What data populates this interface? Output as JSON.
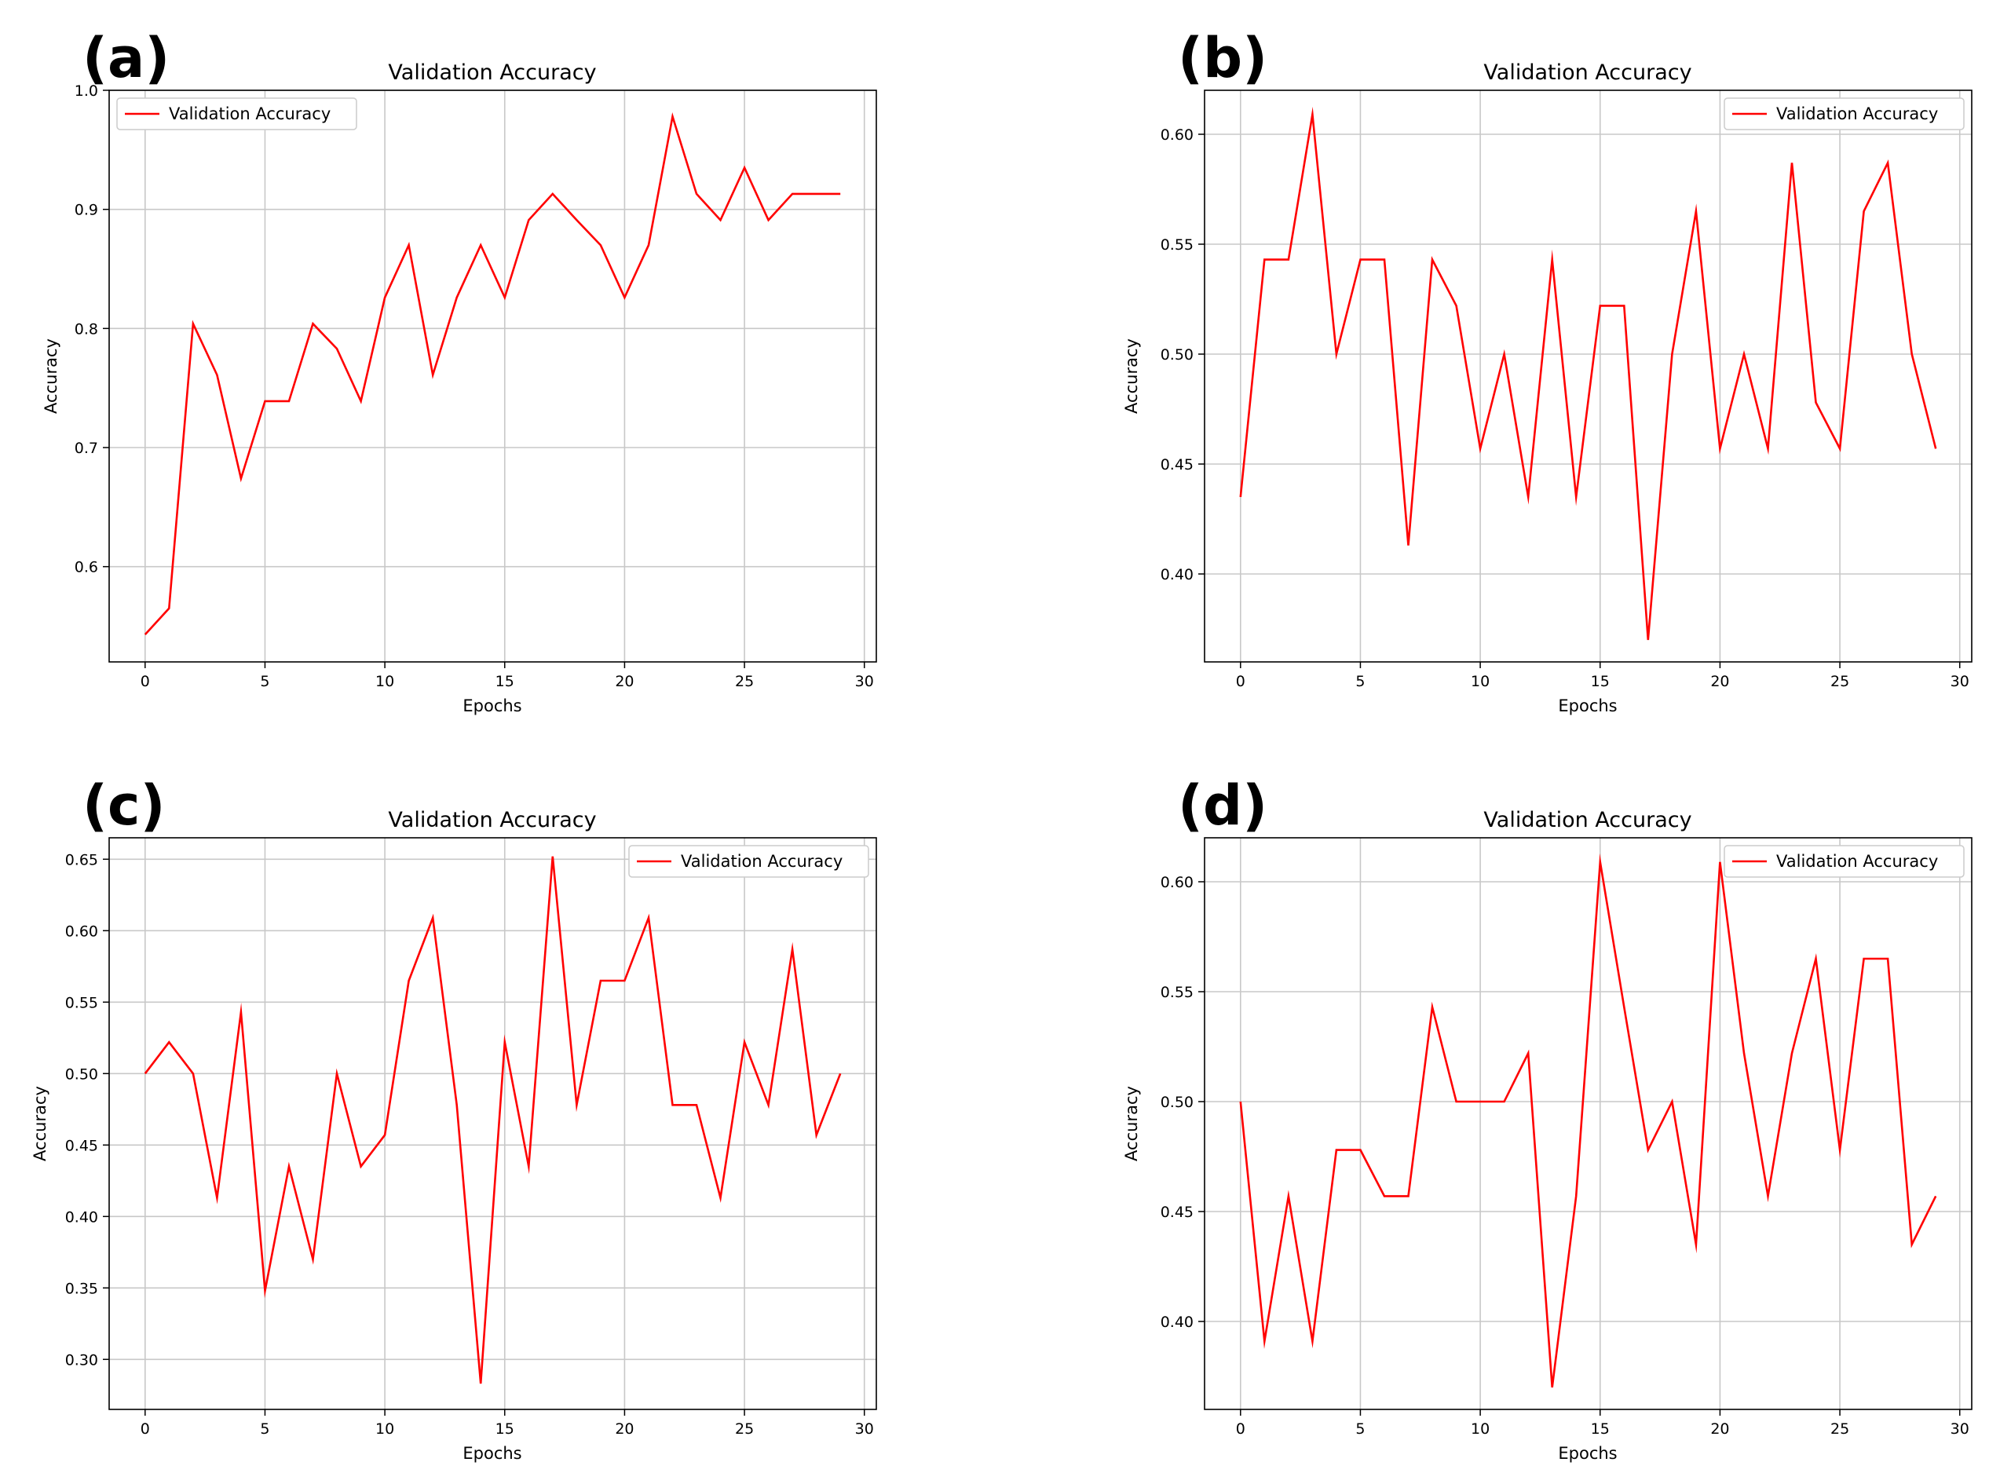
{
  "colors": {
    "line": "#ff0000",
    "grid": "#c8c8c8",
    "axes": "#000000",
    "background": "#ffffff"
  },
  "chart_data": [
    {
      "panel_label": "(a)",
      "type": "line",
      "title": "Validation Accuracy",
      "xlabel": "Epochs",
      "ylabel": "Accuracy",
      "xlim": [
        -1.5,
        30.5
      ],
      "ylim": [
        0.52,
        1.0
      ],
      "xticks": [
        0,
        5,
        10,
        15,
        20,
        25,
        30
      ],
      "yticks": [
        0.6,
        0.7,
        0.8,
        0.9,
        1.0
      ],
      "ytick_labels": [
        "0.6",
        "0.7",
        "0.8",
        "0.9",
        "1.0"
      ],
      "grid": true,
      "legend": {
        "label": "Validation Accuracy",
        "position": "top-left"
      },
      "series": [
        {
          "name": "Validation Accuracy",
          "x": [
            0,
            1,
            2,
            3,
            4,
            5,
            6,
            7,
            8,
            9,
            10,
            11,
            12,
            13,
            14,
            15,
            16,
            17,
            18,
            19,
            20,
            21,
            22,
            23,
            24,
            25,
            26,
            27,
            28,
            29
          ],
          "values": [
            0.543,
            0.565,
            0.804,
            0.761,
            0.674,
            0.739,
            0.739,
            0.804,
            0.783,
            0.739,
            0.826,
            0.87,
            0.761,
            0.826,
            0.87,
            0.826,
            0.891,
            0.913,
            0.891,
            0.87,
            0.826,
            0.87,
            0.978,
            0.913,
            0.891,
            0.935,
            0.891,
            0.913,
            0.913,
            0.913
          ]
        }
      ]
    },
    {
      "panel_label": "(b)",
      "type": "line",
      "title": "Validation Accuracy",
      "xlabel": "Epochs",
      "ylabel": "Accuracy",
      "xlim": [
        -1.5,
        30.5
      ],
      "ylim": [
        0.36,
        0.62
      ],
      "xticks": [
        0,
        5,
        10,
        15,
        20,
        25,
        30
      ],
      "yticks": [
        0.4,
        0.45,
        0.5,
        0.55,
        0.6
      ],
      "ytick_labels": [
        "0.40",
        "0.45",
        "0.50",
        "0.55",
        "0.60"
      ],
      "grid": true,
      "legend": {
        "label": "Validation Accuracy",
        "position": "top-right"
      },
      "series": [
        {
          "name": "Validation Accuracy",
          "x": [
            0,
            1,
            2,
            3,
            4,
            5,
            6,
            7,
            8,
            9,
            10,
            11,
            12,
            13,
            14,
            15,
            16,
            17,
            18,
            19,
            20,
            21,
            22,
            23,
            24,
            25,
            26,
            27,
            28,
            29
          ],
          "values": [
            0.435,
            0.543,
            0.543,
            0.609,
            0.5,
            0.543,
            0.543,
            0.413,
            0.543,
            0.522,
            0.457,
            0.5,
            0.435,
            0.543,
            0.435,
            0.522,
            0.522,
            0.37,
            0.5,
            0.565,
            0.457,
            0.5,
            0.457,
            0.587,
            0.478,
            0.457,
            0.565,
            0.587,
            0.5,
            0.457
          ]
        }
      ]
    },
    {
      "panel_label": "(c)",
      "type": "line",
      "title": "Validation Accuracy",
      "xlabel": "Epochs",
      "ylabel": "Accuracy",
      "xlim": [
        -1.5,
        30.5
      ],
      "ylim": [
        0.265,
        0.665
      ],
      "xticks": [
        0,
        5,
        10,
        15,
        20,
        25,
        30
      ],
      "yticks": [
        0.3,
        0.35,
        0.4,
        0.45,
        0.5,
        0.55,
        0.6,
        0.65
      ],
      "ytick_labels": [
        "0.30",
        "0.35",
        "0.40",
        "0.45",
        "0.50",
        "0.55",
        "0.60",
        "0.65"
      ],
      "grid": true,
      "legend": {
        "label": "Validation Accuracy",
        "position": "top-right"
      },
      "series": [
        {
          "name": "Validation Accuracy",
          "x": [
            0,
            1,
            2,
            3,
            4,
            5,
            6,
            7,
            8,
            9,
            10,
            11,
            12,
            13,
            14,
            15,
            16,
            17,
            18,
            19,
            20,
            21,
            22,
            23,
            24,
            25,
            26,
            27,
            28,
            29
          ],
          "values": [
            0.5,
            0.522,
            0.5,
            0.413,
            0.543,
            0.348,
            0.435,
            0.37,
            0.5,
            0.435,
            0.457,
            0.565,
            0.609,
            0.478,
            0.283,
            0.522,
            0.435,
            0.652,
            0.478,
            0.565,
            0.565,
            0.609,
            0.478,
            0.478,
            0.413,
            0.522,
            0.478,
            0.587,
            0.457,
            0.5
          ]
        }
      ]
    },
    {
      "panel_label": "(d)",
      "type": "line",
      "title": "Validation Accuracy",
      "xlabel": "Epochs",
      "ylabel": "Accuracy",
      "xlim": [
        -1.5,
        30.5
      ],
      "ylim": [
        0.36,
        0.62
      ],
      "xticks": [
        0,
        5,
        10,
        15,
        20,
        25,
        30
      ],
      "yticks": [
        0.4,
        0.45,
        0.5,
        0.55,
        0.6
      ],
      "ytick_labels": [
        "0.40",
        "0.45",
        "0.50",
        "0.55",
        "0.60"
      ],
      "grid": true,
      "legend": {
        "label": "Validation Accuracy",
        "position": "top-right"
      },
      "series": [
        {
          "name": "Validation Accuracy",
          "x": [
            0,
            1,
            2,
            3,
            4,
            5,
            6,
            7,
            8,
            9,
            10,
            11,
            12,
            13,
            14,
            15,
            16,
            17,
            18,
            19,
            20,
            21,
            22,
            23,
            24,
            25,
            26,
            27,
            28,
            29
          ],
          "values": [
            0.5,
            0.391,
            0.457,
            0.391,
            0.478,
            0.478,
            0.457,
            0.457,
            0.543,
            0.5,
            0.5,
            0.5,
            0.522,
            0.37,
            0.457,
            0.609,
            0.543,
            0.478,
            0.5,
            0.435,
            0.609,
            0.522,
            0.457,
            0.522,
            0.565,
            0.478,
            0.565,
            0.565,
            0.435,
            0.457
          ]
        }
      ]
    }
  ]
}
